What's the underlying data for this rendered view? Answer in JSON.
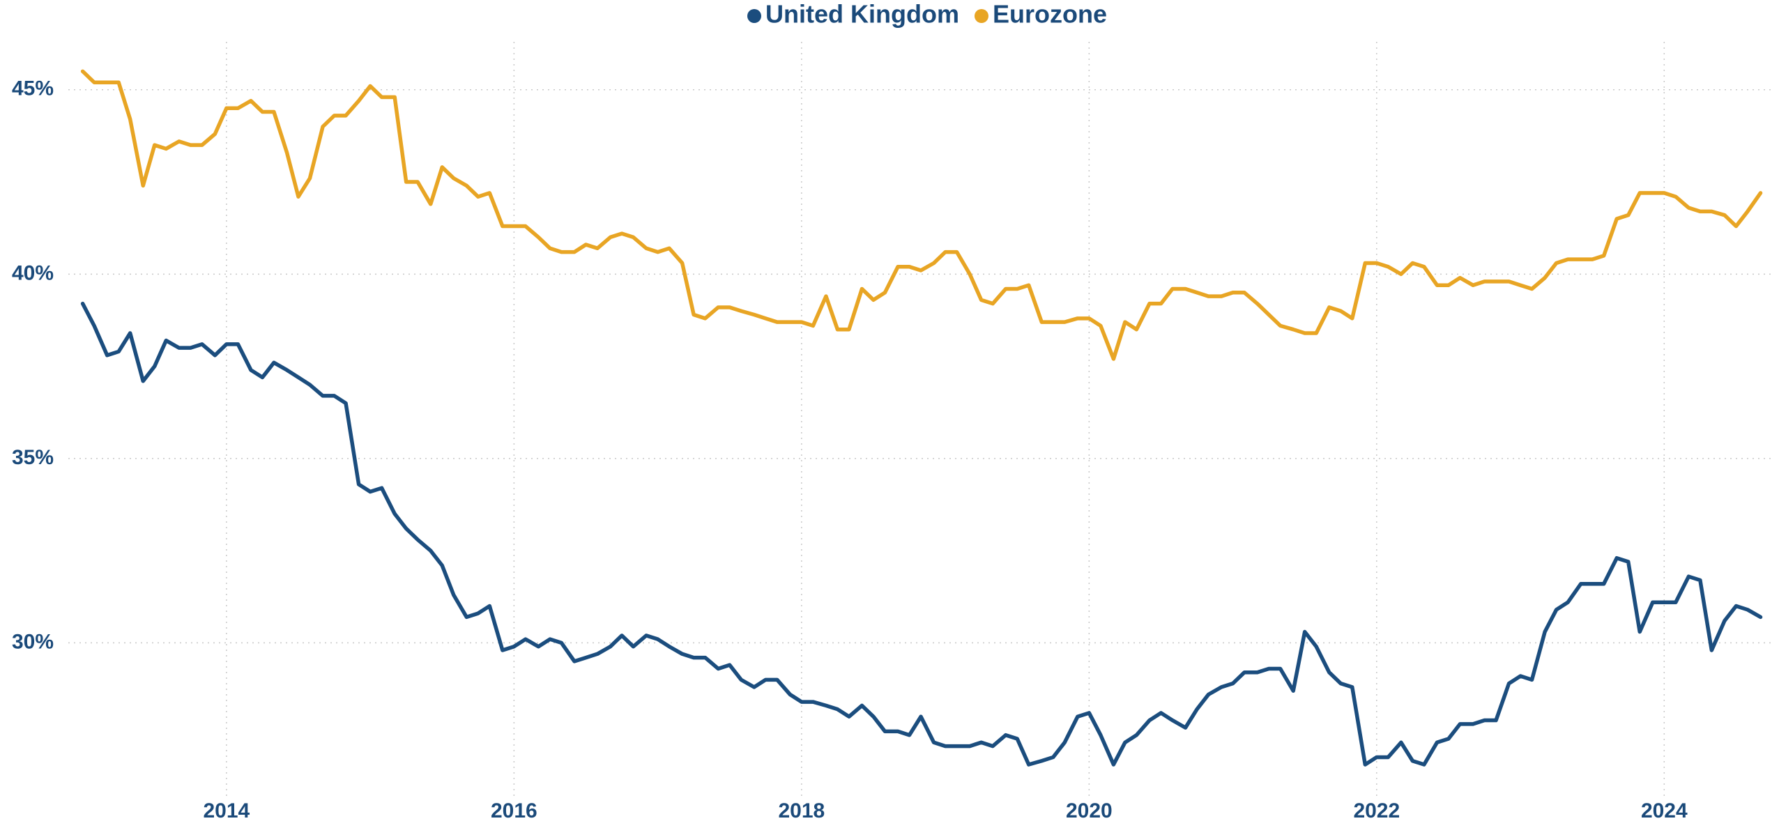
{
  "chart_data": {
    "type": "line",
    "x": [
      2013,
      2013.08,
      2013.17,
      2013.25,
      2013.33,
      2013.42,
      2013.5,
      2013.58,
      2013.67,
      2013.75,
      2013.83,
      2013.92,
      2014,
      2014.08,
      2014.17,
      2014.25,
      2014.33,
      2014.42,
      2014.5,
      2014.58,
      2014.67,
      2014.75,
      2014.83,
      2014.92,
      2015,
      2015.08,
      2015.17,
      2015.25,
      2015.33,
      2015.42,
      2015.5,
      2015.58,
      2015.67,
      2015.75,
      2015.83,
      2015.92,
      2016,
      2016.08,
      2016.17,
      2016.25,
      2016.33,
      2016.42,
      2016.5,
      2016.58,
      2016.67,
      2016.75,
      2016.83,
      2016.92,
      2017,
      2017.08,
      2017.17,
      2017.25,
      2017.33,
      2017.42,
      2017.5,
      2017.58,
      2017.67,
      2017.75,
      2017.83,
      2017.92,
      2018,
      2018.08,
      2018.17,
      2018.25,
      2018.33,
      2018.42,
      2018.5,
      2018.58,
      2018.67,
      2018.75,
      2018.83,
      2018.92,
      2019,
      2019.08,
      2019.17,
      2019.25,
      2019.33,
      2019.42,
      2019.5,
      2019.58,
      2019.67,
      2019.75,
      2019.83,
      2019.92,
      2020,
      2020.08,
      2020.17,
      2020.25,
      2020.33,
      2020.42,
      2020.5,
      2020.58,
      2020.67,
      2020.75,
      2020.83,
      2020.92,
      2021,
      2021.08,
      2021.17,
      2021.25,
      2021.33,
      2021.42,
      2021.5,
      2021.58,
      2021.67,
      2021.75,
      2021.83,
      2021.92,
      2022,
      2022.08,
      2022.17,
      2022.25,
      2022.33,
      2022.42,
      2022.5,
      2022.58,
      2022.67,
      2022.75,
      2022.83,
      2022.92,
      2023,
      2023.08,
      2023.17,
      2023.25,
      2023.33,
      2023.42,
      2023.5,
      2023.58,
      2023.67,
      2023.75,
      2023.83,
      2023.92,
      2024,
      2024.08,
      2024.17,
      2024.25,
      2024.33,
      2024.42,
      2024.5,
      2024.58,
      2024.67
    ],
    "series": [
      {
        "name": "United Kingdom",
        "color": "#1b4d7e",
        "values": [
          39.2,
          38.6,
          37.8,
          37.9,
          38.4,
          37.1,
          37.5,
          38.2,
          38.0,
          38.0,
          38.1,
          37.8,
          38.1,
          38.1,
          37.4,
          37.2,
          37.6,
          37.4,
          37.2,
          37.0,
          36.7,
          36.7,
          36.5,
          34.3,
          34.1,
          34.2,
          33.5,
          33.1,
          32.8,
          32.5,
          32.1,
          31.3,
          30.7,
          30.8,
          31.0,
          29.8,
          29.9,
          30.1,
          29.9,
          30.1,
          30.0,
          29.5,
          29.6,
          29.7,
          29.9,
          30.2,
          29.9,
          30.2,
          30.1,
          29.9,
          29.7,
          29.6,
          29.6,
          29.3,
          29.4,
          29.0,
          28.8,
          29.0,
          29.0,
          28.6,
          28.4,
          28.4,
          28.3,
          28.2,
          28.0,
          28.3,
          28.0,
          27.6,
          27.6,
          27.5,
          28.0,
          27.3,
          27.2,
          27.2,
          27.2,
          27.3,
          27.2,
          27.5,
          27.4,
          26.7,
          26.8,
          26.9,
          27.3,
          28.0,
          28.1,
          27.5,
          26.7,
          27.3,
          27.5,
          27.9,
          28.1,
          27.9,
          27.7,
          28.2,
          28.6,
          28.8,
          28.9,
          29.2,
          29.2,
          29.3,
          29.3,
          28.7,
          30.3,
          29.9,
          29.2,
          28.9,
          28.8,
          26.7,
          26.9,
          26.9,
          27.3,
          26.8,
          26.7,
          27.3,
          27.4,
          27.8,
          27.8,
          27.9,
          27.9,
          28.9,
          29.1,
          29.0,
          30.3,
          30.9,
          31.1,
          31.6,
          31.6,
          31.6,
          32.3,
          32.2,
          30.3,
          31.1,
          31.1,
          31.1,
          31.8,
          31.7,
          29.8,
          30.6,
          31.0,
          30.9,
          30.7
        ]
      },
      {
        "name": "Eurozone",
        "color": "#e8a524",
        "values": [
          45.5,
          45.2,
          45.2,
          45.2,
          44.2,
          42.4,
          43.5,
          43.4,
          43.6,
          43.5,
          43.5,
          43.8,
          44.5,
          44.5,
          44.7,
          44.4,
          44.4,
          43.3,
          42.1,
          42.6,
          44.0,
          44.3,
          44.3,
          44.7,
          45.1,
          44.8,
          44.8,
          42.5,
          42.5,
          41.9,
          42.9,
          42.6,
          42.4,
          42.1,
          42.2,
          41.3,
          41.3,
          41.3,
          41.0,
          40.7,
          40.6,
          40.6,
          40.8,
          40.7,
          41.0,
          41.1,
          41.0,
          40.7,
          40.6,
          40.7,
          40.3,
          38.9,
          38.8,
          39.1,
          39.1,
          39.0,
          38.9,
          38.8,
          38.7,
          38.7,
          38.7,
          38.6,
          39.4,
          38.5,
          38.5,
          39.6,
          39.3,
          39.5,
          40.2,
          40.2,
          40.1,
          40.3,
          40.6,
          40.6,
          40.0,
          39.3,
          39.2,
          39.6,
          39.6,
          39.7,
          38.7,
          38.7,
          38.7,
          38.8,
          38.8,
          38.6,
          37.7,
          38.7,
          38.5,
          39.2,
          39.2,
          39.6,
          39.6,
          39.5,
          39.4,
          39.4,
          39.5,
          39.5,
          39.2,
          38.9,
          38.6,
          38.5,
          38.4,
          38.4,
          39.1,
          39.0,
          38.8,
          40.3,
          40.3,
          40.2,
          40.0,
          40.3,
          40.2,
          39.7,
          39.7,
          39.9,
          39.7,
          39.8,
          39.8,
          39.8,
          39.7,
          39.6,
          39.9,
          40.3,
          40.4,
          40.4,
          40.4,
          40.5,
          41.5,
          41.6,
          42.2,
          42.2,
          42.2,
          42.1,
          41.8,
          41.7,
          41.7,
          41.6,
          41.3,
          41.7,
          42.2
        ]
      }
    ],
    "xlim": [
      2012.9,
      2024.75
    ],
    "xticks": [
      2014,
      2016,
      2018,
      2020,
      2022,
      2024
    ],
    "ylim": [
      25.85,
      46.3
    ],
    "yticks": [
      {
        "value": 30,
        "label": "30%"
      },
      {
        "value": 35,
        "label": "35%"
      },
      {
        "value": 40,
        "label": "40%"
      },
      {
        "value": 45,
        "label": "45%"
      }
    ],
    "grid": true,
    "legend": "top"
  }
}
